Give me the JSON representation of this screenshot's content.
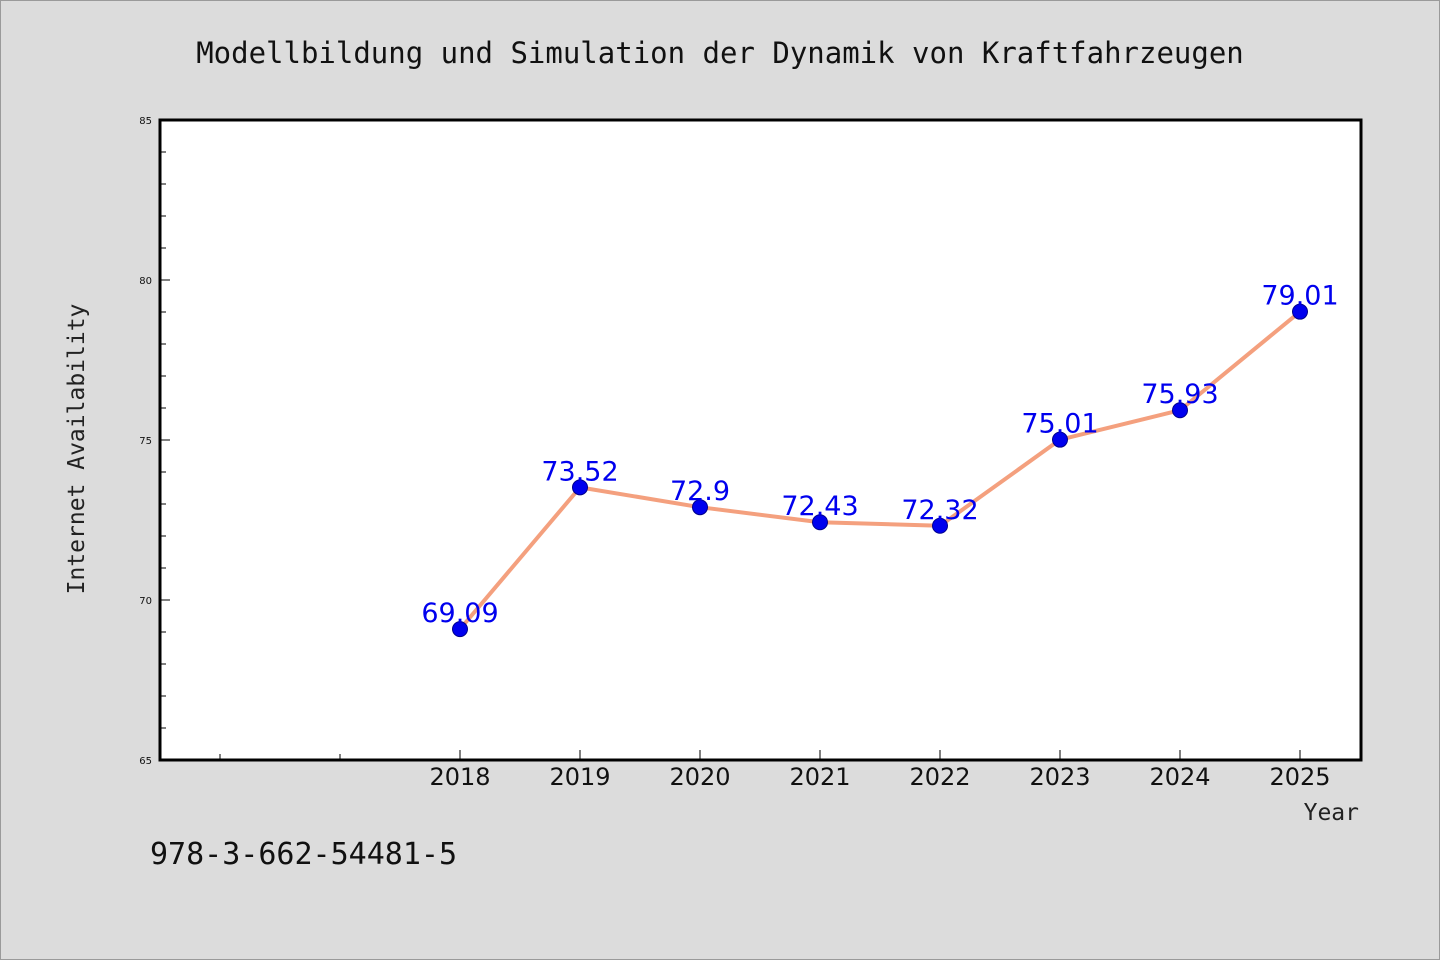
{
  "chart_data": {
    "type": "line",
    "title": "Modellbildung und Simulation der Dynamik von Kraftfahrzeugen",
    "xlabel": "Year",
    "ylabel": "Internet Availability",
    "x": [
      "2018",
      "2019",
      "2020",
      "2021",
      "2022",
      "2023",
      "2024",
      "2025"
    ],
    "series": [
      {
        "values": [
          69.09,
          73.52,
          72.9,
          72.43,
          72.32,
          75.01,
          75.93,
          79.01
        ]
      }
    ],
    "data_labels": [
      "69.09",
      "73.52",
      "72.9",
      "72.43",
      "72.32",
      "75.01",
      "75.93",
      "79.01"
    ],
    "ylim": [
      65,
      85
    ],
    "yticks": [
      "65",
      "70",
      "75",
      "80",
      "85"
    ],
    "grid": false,
    "line_color": "#f4a07e",
    "marker_color": "#0000ee",
    "label_color": "#0000ee"
  },
  "footer": {
    "isbn": "978-3-662-54481-5"
  }
}
